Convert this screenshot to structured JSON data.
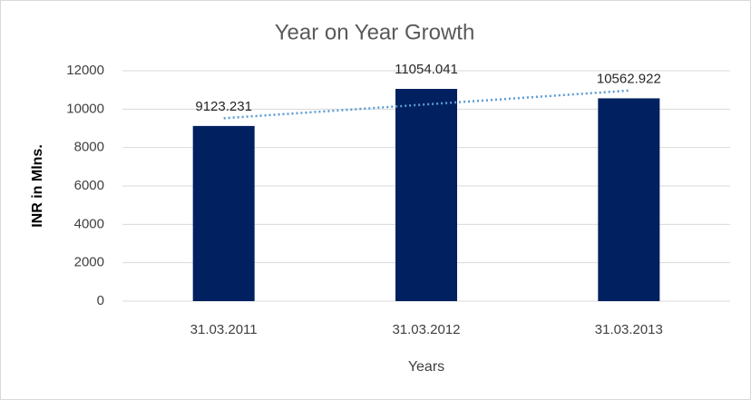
{
  "chart_data": {
    "type": "bar",
    "title": "Year on Year Growth",
    "categories": [
      "31.03.2011",
      "31.03.2012",
      "31.03.2013"
    ],
    "values": [
      9123.231,
      11054.041,
      10562.922
    ],
    "color": "#002060",
    "x_label": "Years",
    "y_label": "INR in Mlns.",
    "ylim": [
      0,
      12000
    ],
    "yticks": [
      0,
      2000,
      4000,
      6000,
      8000,
      10000,
      12000
    ],
    "grid": true,
    "trendline": true,
    "trendline_color": "#5b9bd5"
  }
}
